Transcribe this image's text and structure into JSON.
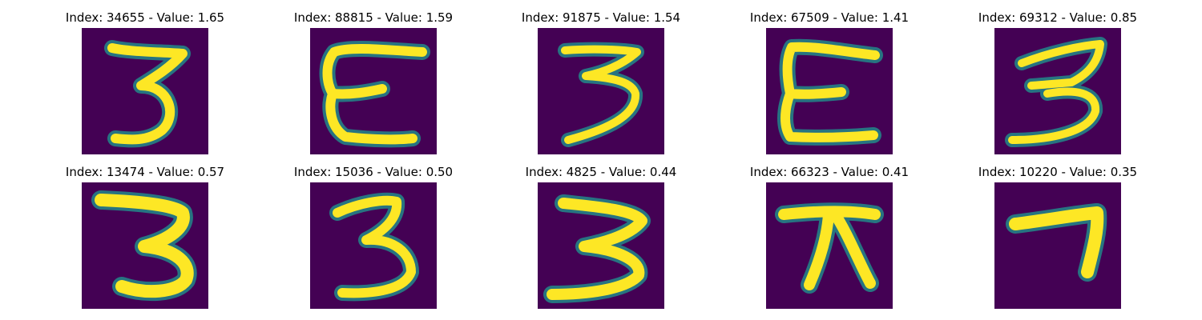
{
  "colors": {
    "background": "#440154",
    "mid": "#21918c",
    "stroke": "#fde725"
  },
  "panels": [
    {
      "index": "34655",
      "value": "1.65",
      "title": "Index: 34655 - Value: 1.65",
      "glyph": "3"
    },
    {
      "index": "88815",
      "value": "1.59",
      "title": "Index: 88815 - Value: 1.59",
      "glyph": "ε"
    },
    {
      "index": "91875",
      "value": "1.54",
      "title": "Index: 91875 - Value: 1.54",
      "glyph": "3"
    },
    {
      "index": "67509",
      "value": "1.41",
      "title": "Index: 67509 - Value: 1.41",
      "glyph": "ε"
    },
    {
      "index": "69312",
      "value": "0.85",
      "title": "Index: 69312 - Value: 0.85",
      "glyph": "3"
    },
    {
      "index": "13474",
      "value": "0.57",
      "title": "Index: 13474 - Value: 0.57",
      "glyph": "3"
    },
    {
      "index": "15036",
      "value": "0.50",
      "title": "Index: 15036 - Value: 0.50",
      "glyph": "3"
    },
    {
      "index": "4825",
      "value": "0.44",
      "title": "Index: 4825 - Value: 0.44",
      "glyph": "3"
    },
    {
      "index": "66323",
      "value": "0.41",
      "title": "Index: 66323 - Value: 0.41",
      "glyph": "π"
    },
    {
      "index": "10220",
      "value": "0.35",
      "title": "Index: 10220 - Value: 0.35",
      "glyph": "7"
    }
  ]
}
